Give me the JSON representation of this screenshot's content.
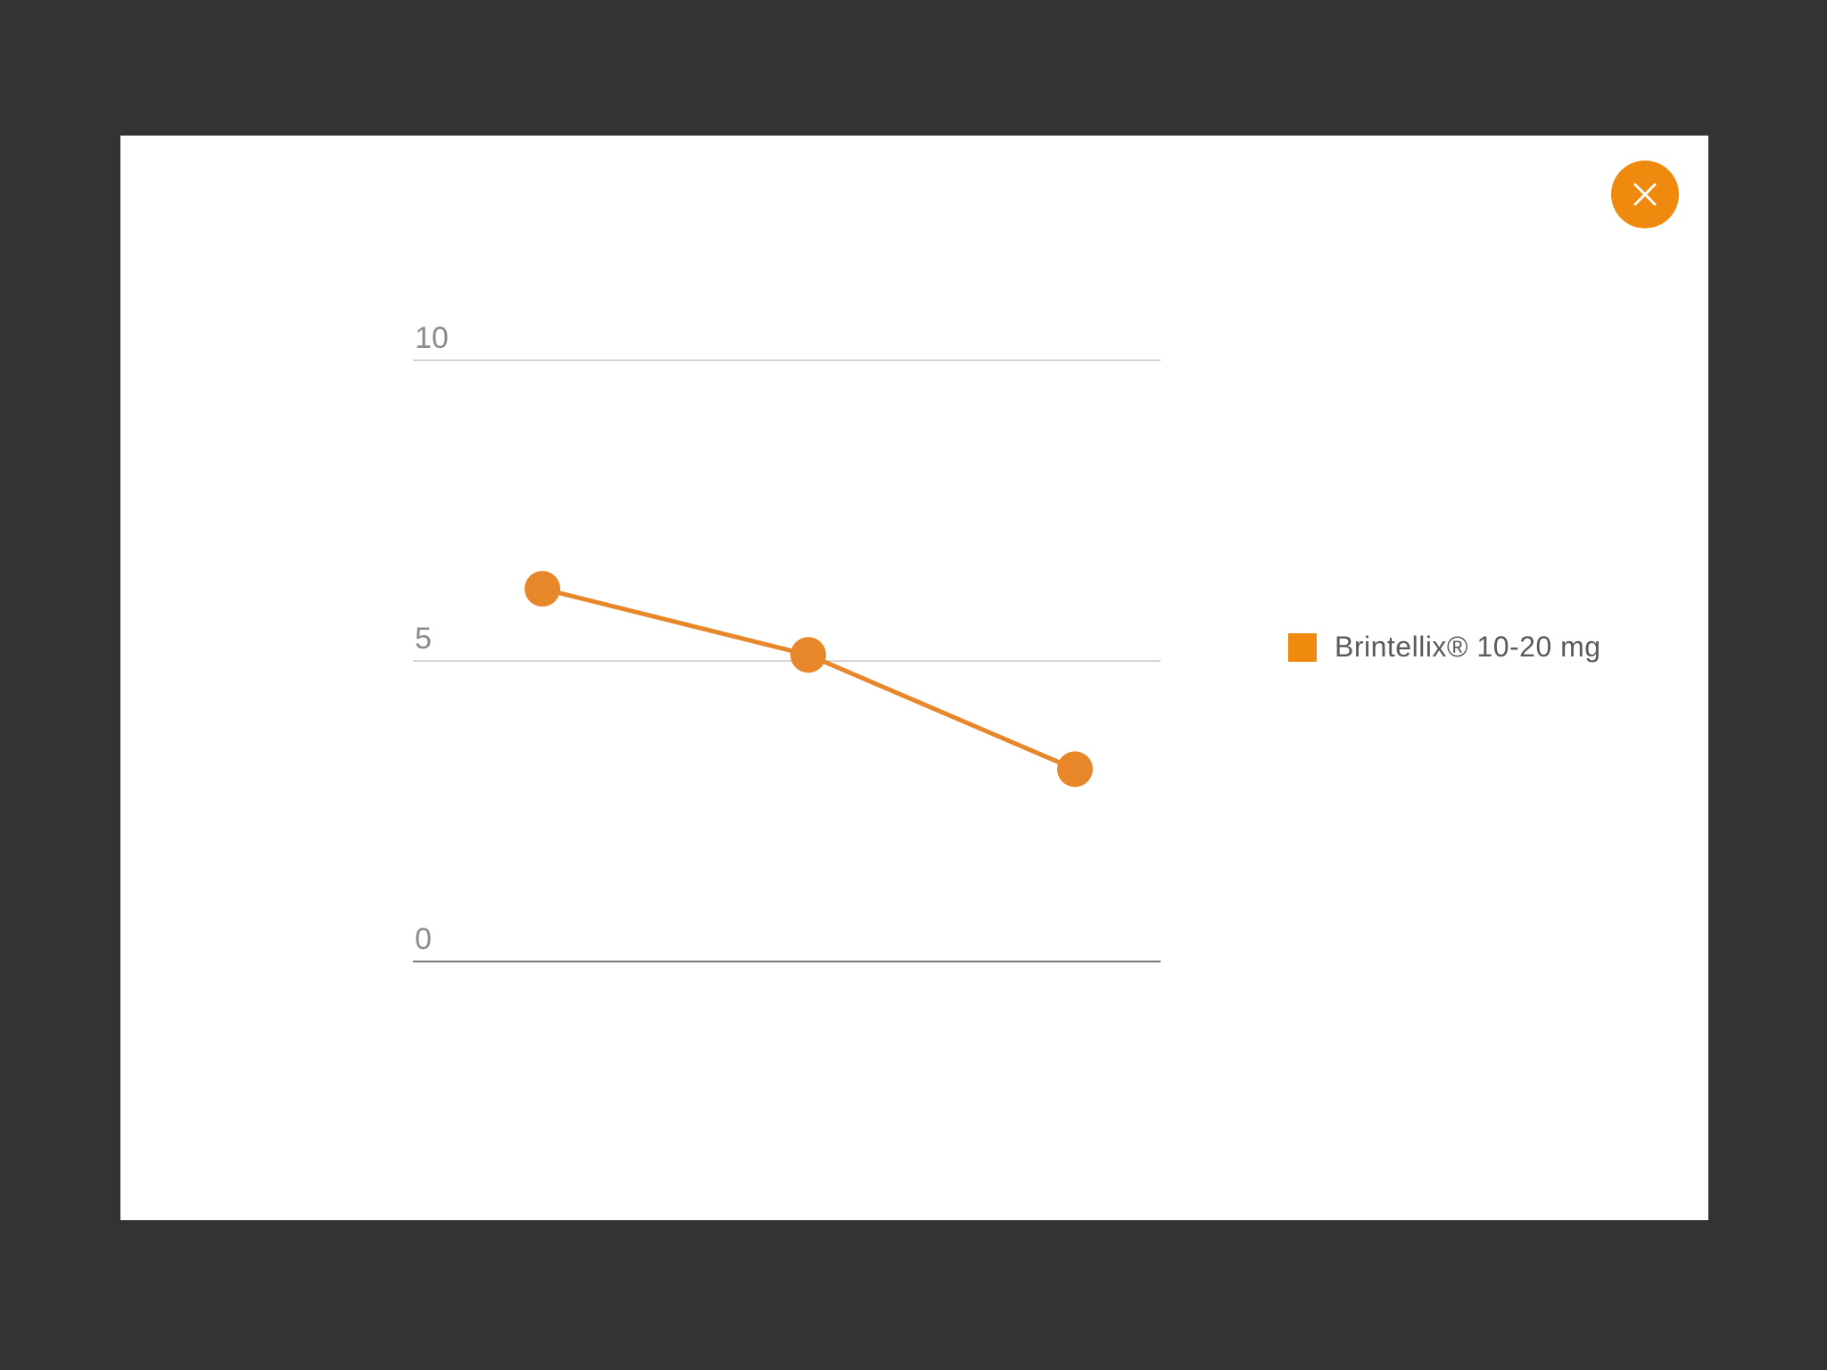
{
  "modal": {
    "close_icon": "close-icon"
  },
  "colors": {
    "background": "#333333",
    "panel": "#ffffff",
    "accent": "#ef8a0e",
    "line": "#e8862a",
    "grid": "#c8c8c8",
    "baseline": "#777777",
    "tick_text": "#8a8a8a",
    "legend_text": "#5a5a5a"
  },
  "chart_data": {
    "type": "line",
    "title": "",
    "xlabel": "",
    "ylabel": "",
    "x": [
      1,
      2,
      3
    ],
    "ylim": [
      0,
      10
    ],
    "yticks": [
      0,
      5,
      10
    ],
    "ytick_labels": [
      "0",
      "5",
      "10"
    ],
    "grid": true,
    "legend_position": "right",
    "series": [
      {
        "name": "Brintellix® 10-20 mg",
        "color": "#e8862a",
        "values": [
          6.2,
          5.1,
          3.2
        ]
      }
    ]
  }
}
